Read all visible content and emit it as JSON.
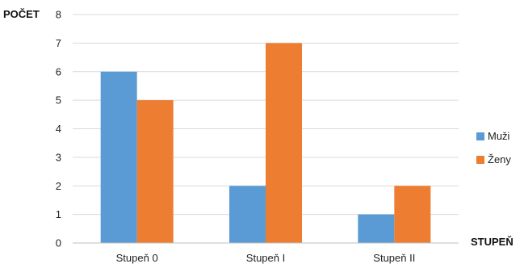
{
  "chart_data": {
    "type": "bar",
    "title": "",
    "ylabel": "POČET",
    "xlabel": "STUPEŇ",
    "categories": [
      "Stupeň 0",
      "Stupeň I",
      "Stupeň II"
    ],
    "series": [
      {
        "name": "Muži",
        "values": [
          6,
          2,
          1
        ],
        "color": "#5b9bd5"
      },
      {
        "name": "Ženy",
        "values": [
          5,
          7,
          2
        ],
        "color": "#ed7d31"
      }
    ],
    "ylim": [
      0,
      8
    ],
    "yticks": [
      0,
      1,
      2,
      3,
      4,
      5,
      6,
      7,
      8
    ],
    "grid": true,
    "legend_position": "right"
  }
}
